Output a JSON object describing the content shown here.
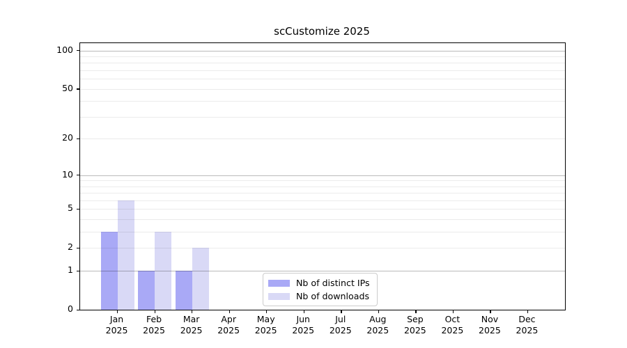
{
  "title": "scCustomize 2025",
  "chart_data": {
    "type": "bar",
    "title": "scCustomize 2025",
    "categories": [
      "Jan",
      "Feb",
      "Mar",
      "Apr",
      "May",
      "Jun",
      "Jul",
      "Aug",
      "Sep",
      "Oct",
      "Nov",
      "Dec"
    ],
    "year": "2025",
    "series": [
      {
        "name": "Nb of distinct IPs",
        "color": "#a9a9f6",
        "values": [
          3,
          1,
          1,
          0,
          0,
          0,
          0,
          0,
          0,
          0,
          0,
          0
        ]
      },
      {
        "name": "Nb of downloads",
        "color": "#d9d9f6",
        "values": [
          6,
          3,
          2,
          0,
          0,
          0,
          0,
          0,
          0,
          0,
          0,
          0
        ]
      }
    ],
    "xlabel": "",
    "ylabel": "",
    "yscale": "log1p",
    "ylim": [
      0,
      114
    ],
    "yticks": [
      0,
      1,
      2,
      5,
      10,
      20,
      50,
      100
    ],
    "minor_gridlines": [
      2,
      3,
      4,
      5,
      6,
      7,
      8,
      9,
      20,
      30,
      40,
      50,
      60,
      70,
      80,
      90
    ],
    "major_gridlines": [
      1,
      10,
      100
    ],
    "grid": true,
    "legend_position": "lower center"
  }
}
